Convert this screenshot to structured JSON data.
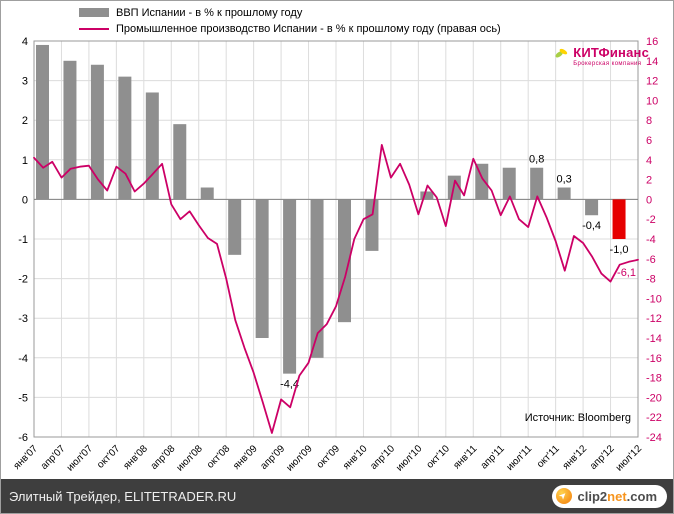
{
  "legend": {
    "gdp_label": "ВВП Испании - в % к прошлому году",
    "ip_label": "Промышленное производство Испании - в % к прошлому году (правая ось)"
  },
  "logo": {
    "name": "КИТФинанс",
    "subtitle": "Брокерская компания"
  },
  "source_note": "Источник: Bloomberg",
  "footer": {
    "site_label": "Элитный Трейдер, ELITETRADER.RU",
    "clip2net": {
      "part1": "clip2",
      "part2": "net",
      "part3": ".com"
    }
  },
  "colors": {
    "bar": "#8f8f8f",
    "bar_highlight": "#e60000",
    "line": "#cc0066",
    "right_axis_text": "#cc0066",
    "grid": "#dcdcdc",
    "zero_line": "#808080",
    "plot_border": "#9a9a9a",
    "footer_bg": "#3e3e3e",
    "accent_orange": "#f7941d"
  },
  "chart_data": {
    "type": "bar",
    "subtype": "bar+line combo, dual axis",
    "x_tick_labels": [
      "янв'07",
      "апр'07",
      "июл'07",
      "окт'07",
      "янв'08",
      "апр'08",
      "июл'08",
      "окт'08",
      "янв'09",
      "апр'09",
      "июл'09",
      "окт'09",
      "янв'10",
      "апр'10",
      "июл'10",
      "окт'10",
      "янв'11",
      "апр'11",
      "июл'11",
      "окт'11",
      "янв'12",
      "апр'12",
      "июл'12"
    ],
    "left_axis": {
      "range": [
        -6,
        4
      ],
      "ticks": [
        4,
        3,
        2,
        1,
        0,
        -1,
        -2,
        -3,
        -4,
        -5,
        -6
      ]
    },
    "right_axis": {
      "range": [
        -24,
        16
      ],
      "ticks": [
        16,
        14,
        12,
        10,
        8,
        6,
        4,
        2,
        0,
        -2,
        -4,
        -6,
        -8,
        -10,
        -12,
        -14,
        -16,
        -18,
        -20,
        -22,
        -24
      ]
    },
    "grid": true,
    "legend_position": "top-left",
    "series": [
      {
        "name": "ВВП Испании - в % к прошлому году",
        "type": "bar",
        "axis": "left",
        "frequency": "quarterly",
        "values": [
          3.9,
          3.5,
          3.4,
          3.1,
          2.7,
          1.9,
          0.3,
          -1.4,
          -3.5,
          -4.4,
          -4.0,
          -3.1,
          -1.3,
          0.0,
          0.2,
          0.6,
          0.9,
          0.8,
          0.8,
          0.3,
          -0.4,
          -1.0,
          null
        ],
        "highlight_index": 21,
        "point_labels": [
          {
            "index": 9,
            "text": "-4,4",
            "position": "below"
          },
          {
            "index": 18,
            "text": "0,8",
            "position": "above"
          },
          {
            "index": 19,
            "text": "0,3",
            "position": "above"
          },
          {
            "index": 20,
            "text": "-0,4",
            "position": "below"
          },
          {
            "index": 21,
            "text": "-1,0",
            "position": "below"
          }
        ]
      },
      {
        "name": "Промышленное производство Испании - в % к прошлому году (правая ось)",
        "type": "line",
        "axis": "right",
        "frequency": "monthly",
        "values": [
          4.2,
          3.2,
          3.8,
          2.2,
          3.1,
          3.3,
          3.4,
          2.0,
          0.9,
          3.3,
          2.6,
          0.8,
          1.6,
          2.6,
          3.6,
          -0.5,
          -2.0,
          -1.2,
          -2.6,
          -3.9,
          -4.5,
          -8.0,
          -12.2,
          -15.0,
          -17.5,
          -20.5,
          -23.6,
          -20.2,
          -21.0,
          -17.8,
          -16.5,
          -13.5,
          -12.6,
          -10.8,
          -7.8,
          -4.0,
          -2.0,
          -1.5,
          5.5,
          2.2,
          3.6,
          1.5,
          -1.5,
          1.4,
          0.2,
          -2.7,
          1.9,
          0.4,
          4.1,
          2.1,
          0.9,
          -1.6,
          0.3,
          -2.0,
          -2.8,
          0.3,
          -1.8,
          -4.2,
          -7.2,
          -3.7,
          -4.4,
          -5.8,
          -7.5,
          -8.3,
          -6.6,
          -6.3,
          -6.1
        ],
        "end_label": "-6,1"
      }
    ]
  }
}
